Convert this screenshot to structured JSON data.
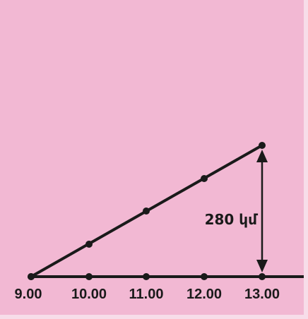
{
  "colors": {
    "background": "#f2b8d3",
    "border": "#f7dde9",
    "ink": "#1a1a1a"
  },
  "diagram": {
    "time_labels": [
      "9.00",
      "10.00",
      "11.00",
      "12.00",
      "13.00"
    ],
    "distance_label": "280 կմ",
    "rising_line_points": 5,
    "baseline_points": 5
  }
}
